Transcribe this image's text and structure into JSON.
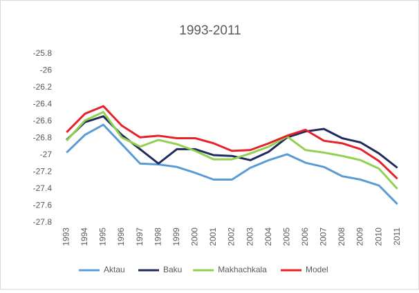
{
  "chart_data": {
    "type": "line",
    "title": "1993-2011",
    "categories": [
      "1993",
      "1994",
      "1995",
      "1996",
      "1997",
      "1998",
      "1999",
      "2000",
      "2001",
      "2002",
      "2003",
      "2004",
      "2005",
      "2006",
      "2007",
      "2008",
      "2009",
      "2010",
      "2011"
    ],
    "series": [
      {
        "name": "Aktau",
        "color": "#5b9bd5",
        "values": [
          -26.97,
          -26.76,
          -26.64,
          -26.87,
          -27.1,
          -27.11,
          -27.14,
          -27.21,
          -27.29,
          -27.29,
          -27.15,
          -27.06,
          -26.99,
          -27.09,
          -27.14,
          -27.25,
          -27.29,
          -27.36,
          -27.58
        ]
      },
      {
        "name": "Baku",
        "color": "#1f2a5c",
        "values": [
          -26.82,
          -26.61,
          -26.54,
          -26.76,
          -26.93,
          -27.1,
          -26.93,
          -26.93,
          -27.0,
          -27.01,
          -27.06,
          -26.96,
          -26.79,
          -26.72,
          -26.69,
          -26.8,
          -26.85,
          -26.98,
          -27.15
        ]
      },
      {
        "name": "Makhachkala",
        "color": "#92d050",
        "values": [
          -26.83,
          -26.59,
          -26.49,
          -26.79,
          -26.9,
          -26.82,
          -26.87,
          -26.95,
          -27.05,
          -27.05,
          -26.98,
          -26.9,
          -26.78,
          -26.94,
          -26.97,
          -27.01,
          -27.06,
          -27.16,
          -27.4
        ]
      },
      {
        "name": "Model",
        "color": "#e8202a",
        "values": [
          -26.73,
          -26.51,
          -26.42,
          -26.65,
          -26.79,
          -26.77,
          -26.8,
          -26.8,
          -26.86,
          -26.95,
          -26.94,
          -26.86,
          -26.77,
          -26.7,
          -26.83,
          -26.86,
          -26.93,
          -27.07,
          -27.28
        ]
      }
    ],
    "ylim": [
      -27.8,
      -25.8
    ],
    "yticks": [
      -25.8,
      -26,
      -26.2,
      -26.4,
      -26.6,
      -26.8,
      -27,
      -27.2,
      -27.4,
      -27.6,
      -27.8
    ],
    "grid": false,
    "legend": "bottom"
  }
}
